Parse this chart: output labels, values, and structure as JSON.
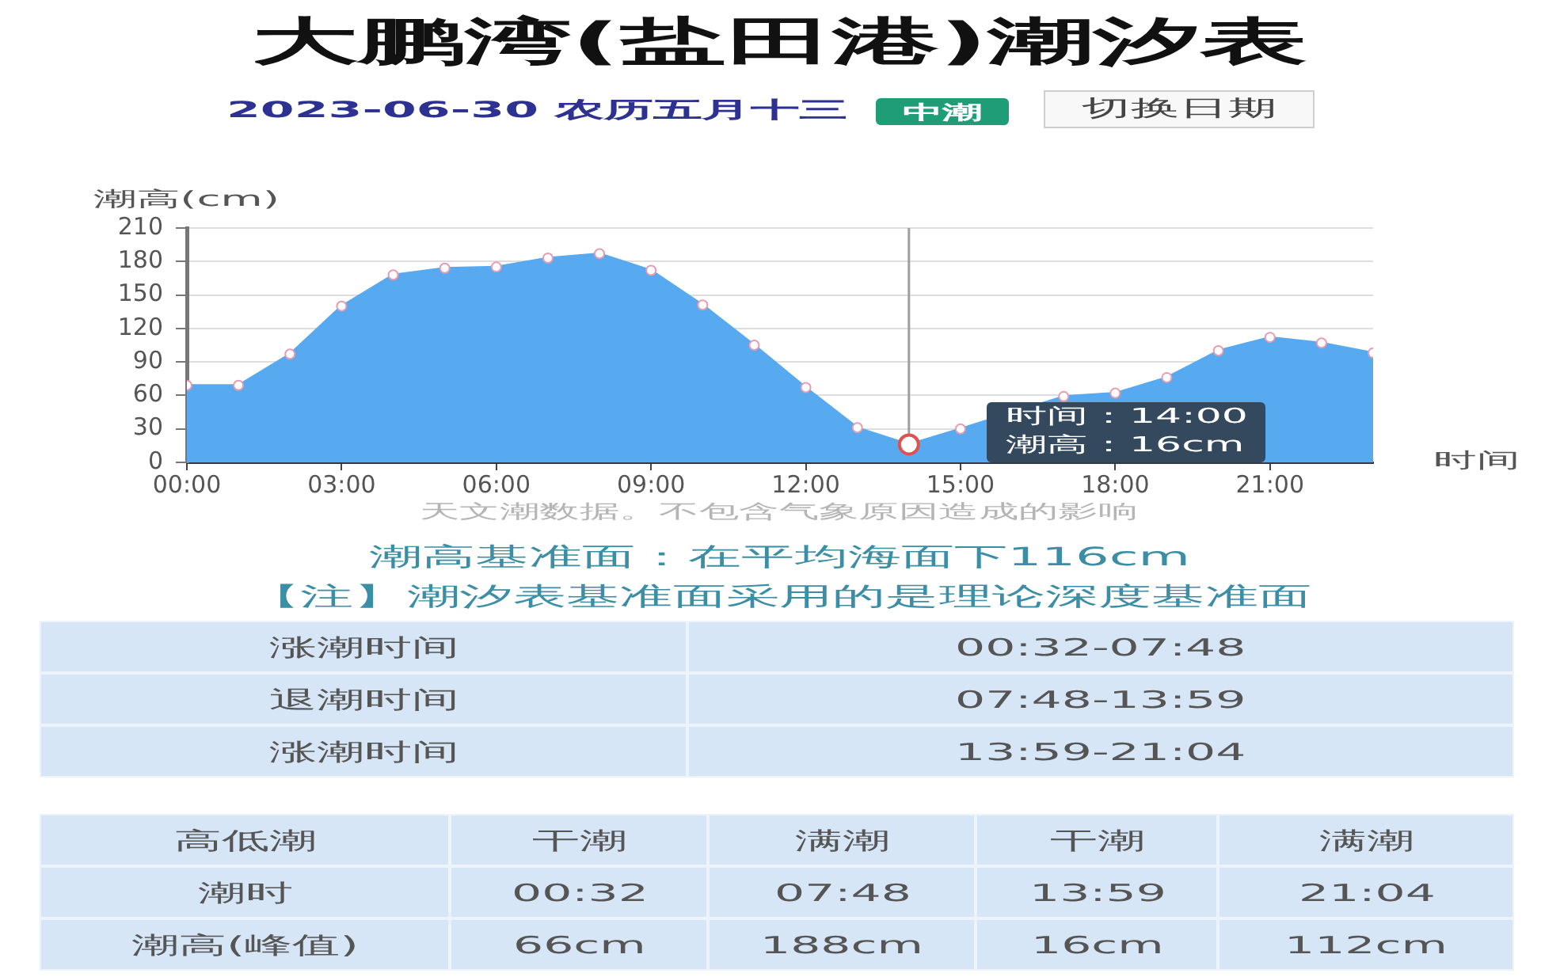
{
  "chart_data": {
    "type": "area",
    "title": "大鹏湾(盐田港)潮汐表",
    "subtitle": "2023-06-30 农历五月十三",
    "xlabel": "时间",
    "ylabel": "潮高(cm)",
    "x": [
      0,
      1,
      2,
      3,
      4,
      5,
      6,
      7,
      8,
      9,
      10,
      11,
      12,
      13,
      14,
      15,
      16,
      17,
      18,
      19,
      20,
      21,
      22,
      23
    ],
    "values": [
      69,
      69,
      97,
      140,
      168,
      174,
      175,
      183,
      187,
      172,
      141,
      105,
      67,
      31,
      16,
      30,
      null,
      59,
      62,
      76,
      100,
      112,
      107,
      98
    ],
    "color": "#57a9f0",
    "xlim": [
      0,
      23
    ],
    "xticks": [
      {
        "value": 0,
        "label": "00:00"
      },
      {
        "value": 3,
        "label": "03:00"
      },
      {
        "value": 6,
        "label": "06:00"
      },
      {
        "value": 9,
        "label": "09:00"
      },
      {
        "value": 12,
        "label": "12:00"
      },
      {
        "value": 15,
        "label": "15:00"
      },
      {
        "value": 18,
        "label": "18:00"
      },
      {
        "value": 21,
        "label": "21:00"
      }
    ],
    "ylim": [
      0,
      210
    ],
    "yticks": [
      0,
      30,
      60,
      90,
      120,
      150,
      180,
      210
    ],
    "grid": "y",
    "marker": "circle",
    "ref_lines": [
      {
        "axis": "x",
        "value": 14,
        "color": "#9e9e9e"
      }
    ],
    "annotations": [
      "中潮",
      "切换日期",
      "时间：14:00",
      "潮高：16cm",
      "天文潮数据。不包含气象原因造成的影响",
      "潮高基准面：在平均海面下116cm",
      "【注】潮汐表基准面采用的是理论深度基准面",
      "涨潮时间",
      "00:32-07:48",
      "退潮时间",
      "07:48-13:59",
      "涨潮时间",
      "13:59-21:04",
      "高低潮",
      "干潮",
      "满潮",
      "干潮",
      "满潮",
      "潮时",
      "00:32",
      "07:48",
      "13:59",
      "21:04",
      "潮高(峰值)",
      "66cm",
      "188cm",
      "16cm",
      "112cm"
    ]
  }
}
